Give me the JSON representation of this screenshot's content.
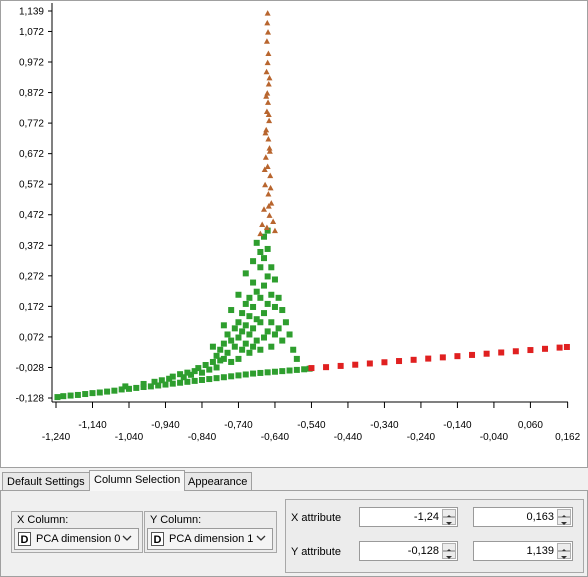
{
  "chart_data": {
    "type": "scatter",
    "xlim": [
      -1.24,
      0.163
    ],
    "ylim": [
      -0.128,
      1.139
    ],
    "x_ticks": [
      "-1,240",
      "-1,140",
      "-1,040",
      "-0,940",
      "-0,840",
      "-0,740",
      "-0,640",
      "-0,540",
      "-0,440",
      "-0,340",
      "-0,240",
      "-0,140",
      "-0,040",
      "0,060",
      "0,162"
    ],
    "y_ticks": [
      "1,139",
      "1,072",
      "0,972",
      "0,872",
      "0,772",
      "0,672",
      "0,572",
      "0,472",
      "0,372",
      "0,272",
      "0,172",
      "0,072",
      "-0,028",
      "-0,128"
    ],
    "series": [
      {
        "color": "#2e9e2e",
        "marker": "square",
        "points": [
          [
            -1.236,
            -0.125
          ],
          [
            -1.22,
            -0.122
          ],
          [
            -1.2,
            -0.12
          ],
          [
            -1.18,
            -0.118
          ],
          [
            -1.16,
            -0.115
          ],
          [
            -1.14,
            -0.112
          ],
          [
            -1.12,
            -0.11
          ],
          [
            -1.1,
            -0.107
          ],
          [
            -1.08,
            -0.104
          ],
          [
            -1.06,
            -0.1
          ],
          [
            -1.04,
            -0.098
          ],
          [
            -1.02,
            -0.095
          ],
          [
            -1.0,
            -0.092
          ],
          [
            -0.98,
            -0.09
          ],
          [
            -0.96,
            -0.087
          ],
          [
            -0.94,
            -0.084
          ],
          [
            -0.92,
            -0.081
          ],
          [
            -0.9,
            -0.078
          ],
          [
            -0.88,
            -0.075
          ],
          [
            -0.86,
            -0.072
          ],
          [
            -0.84,
            -0.069
          ],
          [
            -0.82,
            -0.066
          ],
          [
            -0.8,
            -0.063
          ],
          [
            -0.78,
            -0.06
          ],
          [
            -0.76,
            -0.057
          ],
          [
            -0.74,
            -0.054
          ],
          [
            -0.72,
            -0.051
          ],
          [
            -0.7,
            -0.048
          ],
          [
            -0.68,
            -0.046
          ],
          [
            -0.66,
            -0.044
          ],
          [
            -0.64,
            -0.042
          ],
          [
            -0.62,
            -0.04
          ],
          [
            -0.6,
            -0.038
          ],
          [
            -0.58,
            -0.036
          ],
          [
            -0.56,
            -0.034
          ],
          [
            -0.545,
            -0.032
          ],
          [
            -1.05,
            -0.09
          ],
          [
            -1.0,
            -0.082
          ],
          [
            -0.97,
            -0.075
          ],
          [
            -0.95,
            -0.07
          ],
          [
            -0.93,
            -0.065
          ],
          [
            -0.92,
            -0.058
          ],
          [
            -0.9,
            -0.05
          ],
          [
            -0.89,
            -0.06
          ],
          [
            -0.88,
            -0.045
          ],
          [
            -0.87,
            -0.052
          ],
          [
            -0.86,
            -0.04
          ],
          [
            -0.85,
            -0.03
          ],
          [
            -0.84,
            -0.045
          ],
          [
            -0.83,
            -0.02
          ],
          [
            -0.82,
            -0.035
          ],
          [
            -0.81,
            -0.01
          ],
          [
            -0.8,
            -0.028
          ],
          [
            -0.8,
            0.01
          ],
          [
            -0.79,
            0.03
          ],
          [
            -0.79,
            -0.005
          ],
          [
            -0.78,
            0.05
          ],
          [
            -0.78,
            0.0
          ],
          [
            -0.77,
            0.08
          ],
          [
            -0.77,
            0.02
          ],
          [
            -0.76,
            0.06
          ],
          [
            -0.76,
            -0.01
          ],
          [
            -0.75,
            0.1
          ],
          [
            -0.75,
            0.04
          ],
          [
            -0.74,
            0.12
          ],
          [
            -0.74,
            0.07
          ],
          [
            -0.74,
            0.0
          ],
          [
            -0.73,
            0.15
          ],
          [
            -0.73,
            0.09
          ],
          [
            -0.73,
            0.03
          ],
          [
            -0.72,
            0.18
          ],
          [
            -0.72,
            0.11
          ],
          [
            -0.72,
            0.05
          ],
          [
            -0.71,
            0.2
          ],
          [
            -0.71,
            0.14
          ],
          [
            -0.71,
            0.08
          ],
          [
            -0.71,
            0.02
          ],
          [
            -0.7,
            0.25
          ],
          [
            -0.7,
            0.17
          ],
          [
            -0.7,
            0.1
          ],
          [
            -0.7,
            0.04
          ],
          [
            -0.69,
            0.22
          ],
          [
            -0.69,
            0.13
          ],
          [
            -0.69,
            0.06
          ],
          [
            -0.68,
            0.3
          ],
          [
            -0.68,
            0.2
          ],
          [
            -0.68,
            0.12
          ],
          [
            -0.68,
            0.03
          ],
          [
            -0.67,
            0.33
          ],
          [
            -0.67,
            0.24
          ],
          [
            -0.67,
            0.15
          ],
          [
            -0.67,
            0.07
          ],
          [
            -0.66,
            0.36
          ],
          [
            -0.66,
            0.27
          ],
          [
            -0.66,
            0.18
          ],
          [
            -0.66,
            0.09
          ],
          [
            -0.65,
            0.3
          ],
          [
            -0.65,
            0.21
          ],
          [
            -0.65,
            0.12
          ],
          [
            -0.65,
            0.04
          ],
          [
            -0.64,
            0.26
          ],
          [
            -0.64,
            0.17
          ],
          [
            -0.64,
            0.08
          ],
          [
            -0.63,
            0.2
          ],
          [
            -0.63,
            0.1
          ],
          [
            -0.62,
            0.16
          ],
          [
            -0.62,
            0.06
          ],
          [
            -0.61,
            0.12
          ],
          [
            -0.6,
            0.08
          ],
          [
            -0.59,
            0.03
          ],
          [
            -0.58,
            0.0
          ],
          [
            -0.74,
            0.21
          ],
          [
            -0.76,
            0.16
          ],
          [
            -0.78,
            0.11
          ],
          [
            -0.81,
            0.04
          ],
          [
            -0.69,
            0.38
          ],
          [
            -0.67,
            0.4
          ],
          [
            -0.66,
            0.42
          ],
          [
            -0.68,
            0.35
          ],
          [
            -0.7,
            0.32
          ],
          [
            -0.72,
            0.28
          ]
        ]
      },
      {
        "color": "#e02020",
        "marker": "square",
        "points": [
          [
            -0.54,
            -0.03
          ],
          [
            -0.5,
            -0.027
          ],
          [
            -0.46,
            -0.023
          ],
          [
            -0.42,
            -0.019
          ],
          [
            -0.38,
            -0.015
          ],
          [
            -0.34,
            -0.011
          ],
          [
            -0.3,
            -0.007
          ],
          [
            -0.26,
            -0.003
          ],
          [
            -0.22,
            0.001
          ],
          [
            -0.18,
            0.005
          ],
          [
            -0.14,
            0.009
          ],
          [
            -0.1,
            0.013
          ],
          [
            -0.06,
            0.017
          ],
          [
            -0.02,
            0.021
          ],
          [
            0.02,
            0.025
          ],
          [
            0.06,
            0.029
          ],
          [
            0.1,
            0.033
          ],
          [
            0.14,
            0.037
          ],
          [
            0.16,
            0.039
          ]
        ]
      },
      {
        "color": "#b8652e",
        "marker": "triangle",
        "points": [
          [
            -0.66,
            1.132
          ],
          [
            -0.661,
            1.1
          ],
          [
            -0.659,
            1.07
          ],
          [
            -0.662,
            1.04
          ],
          [
            -0.658,
            1.0
          ],
          [
            -0.66,
            0.97
          ],
          [
            -0.663,
            0.94
          ],
          [
            -0.657,
            0.9
          ],
          [
            -0.661,
            0.87
          ],
          [
            -0.659,
            0.84
          ],
          [
            -0.662,
            0.81
          ],
          [
            -0.656,
            0.78
          ],
          [
            -0.664,
            0.75
          ],
          [
            -0.658,
            0.72
          ],
          [
            -0.655,
            0.69
          ],
          [
            -0.665,
            0.66
          ],
          [
            -0.66,
            0.63
          ],
          [
            -0.653,
            0.6
          ],
          [
            -0.667,
            0.57
          ],
          [
            -0.658,
            0.54
          ],
          [
            -0.65,
            0.51
          ],
          [
            -0.67,
            0.49
          ],
          [
            -0.655,
            0.47
          ],
          [
            -0.645,
            0.45
          ],
          [
            -0.675,
            0.44
          ],
          [
            -0.662,
            0.43
          ],
          [
            -0.64,
            0.42
          ],
          [
            -0.68,
            0.41
          ],
          [
            -0.657,
            0.5
          ],
          [
            -0.652,
            0.56
          ],
          [
            -0.668,
            0.62
          ],
          [
            -0.654,
            0.68
          ],
          [
            -0.666,
            0.74
          ],
          [
            -0.657,
            0.8
          ],
          [
            -0.664,
            0.86
          ],
          [
            -0.655,
            0.92
          ]
        ]
      }
    ]
  },
  "tabs": [
    "Default Settings",
    "Column Selection",
    "Appearance"
  ],
  "active_tab": "Column Selection",
  "x_column": {
    "title": "X Column:",
    "type_icon": "D",
    "value": "PCA dimension 0"
  },
  "y_column": {
    "title": "Y Column:",
    "type_icon": "D",
    "value": "PCA dimension 1"
  },
  "x_attribute": {
    "label": "X attribute",
    "min": "-1,24",
    "max": "0,163"
  },
  "y_attribute": {
    "label": "Y attribute",
    "min": "-0,128",
    "max": "1,139"
  }
}
